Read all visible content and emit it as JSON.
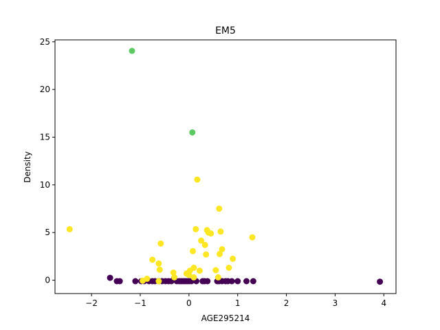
{
  "chart_data": {
    "type": "scatter",
    "title": "EM5",
    "xlabel": "AGE295214",
    "ylabel": "Density",
    "xlim": [
      -2.75,
      4.25
    ],
    "ylim": [
      -1.4,
      25.2
    ],
    "xticks": [
      -2,
      -1,
      0,
      1,
      2,
      3,
      4
    ],
    "yticks": [
      0,
      5,
      10,
      15,
      20,
      25
    ],
    "xtick_labels": [
      "−2",
      "−1",
      "0",
      "1",
      "2",
      "3",
      "4"
    ],
    "ytick_labels": [
      "0",
      "5",
      "10",
      "15",
      "20",
      "25"
    ],
    "grid": false,
    "legend": "none",
    "colors": {
      "purple": "#440154",
      "yellow": "#fde725",
      "green": "#5ec962"
    },
    "series": [
      {
        "color": "#440154",
        "x": [
          -1.62,
          -1.48,
          -1.42,
          -1.1,
          -0.98,
          -0.92,
          -0.82,
          -0.75,
          -0.7,
          -0.62,
          -0.55,
          -0.48,
          -0.42,
          -0.36,
          -0.3,
          -0.25,
          -0.2,
          -0.16,
          -0.12,
          -0.08,
          -0.04,
          0.0,
          0.05,
          0.15,
          0.28,
          0.32,
          0.38,
          0.58,
          0.62,
          0.68,
          0.75,
          0.8,
          0.88,
          1.0,
          1.18,
          1.32,
          3.92
        ],
        "y": [
          0.25,
          -0.1,
          -0.1,
          -0.1,
          -0.1,
          -0.1,
          -0.1,
          -0.1,
          -0.1,
          -0.1,
          -0.1,
          -0.1,
          -0.1,
          -0.1,
          0.25,
          -0.1,
          -0.1,
          -0.1,
          -0.1,
          -0.1,
          -0.1,
          -0.1,
          -0.1,
          -0.1,
          -0.1,
          -0.1,
          -0.1,
          -0.1,
          -0.1,
          -0.1,
          -0.1,
          -0.1,
          -0.1,
          -0.1,
          -0.1,
          -0.1,
          -0.15
        ]
      },
      {
        "color": "#fde725",
        "x": [
          -2.45,
          -0.95,
          -0.86,
          -0.75,
          -0.62,
          -0.6,
          -0.58,
          -0.32,
          -0.3,
          -0.05,
          0.0,
          0.02,
          0.08,
          0.1,
          0.14,
          0.17,
          0.22,
          0.25,
          0.33,
          0.35,
          0.37,
          0.4,
          0.45,
          0.55,
          0.6,
          0.62,
          0.63,
          0.65,
          0.68,
          0.82,
          0.9,
          1.3,
          -0.62,
          0.1
        ],
        "y": [
          5.35,
          -0.05,
          0.15,
          2.15,
          1.75,
          1.1,
          3.85,
          0.8,
          0.3,
          0.7,
          0.55,
          1.0,
          3.05,
          1.3,
          5.35,
          10.55,
          1.0,
          4.15,
          3.7,
          2.7,
          5.25,
          5.0,
          4.9,
          1.05,
          0.3,
          7.5,
          2.75,
          5.1,
          3.25,
          1.3,
          2.25,
          4.5,
          -0.1,
          0.3
        ]
      },
      {
        "color": "#5ec962",
        "x": [
          -1.17,
          0.07
        ],
        "y": [
          24.05,
          15.5
        ]
      }
    ]
  }
}
